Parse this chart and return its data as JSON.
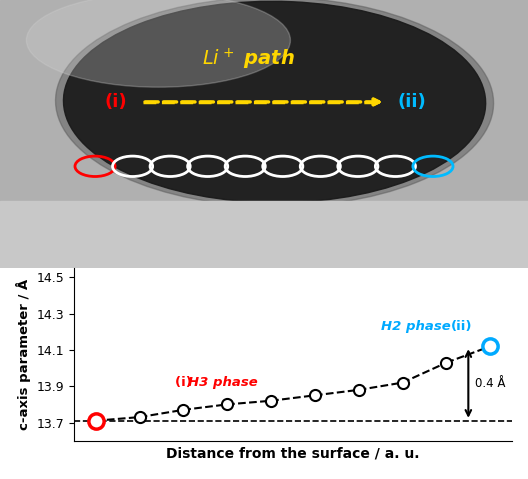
{
  "x_data": [
    1,
    2,
    3,
    4,
    5,
    6,
    7,
    8,
    9,
    10
  ],
  "y_data": [
    13.71,
    13.73,
    13.77,
    13.8,
    13.82,
    13.85,
    13.88,
    13.92,
    14.03,
    14.12
  ],
  "first_point_color": "#FF0000",
  "last_point_color": "#00AAFF",
  "line_color": "#000000",
  "dashed_line_y": 13.71,
  "ylabel": "c-axis parameter / Å",
  "xlabel": "Distance from the surface / a. u.",
  "ylim": [
    13.6,
    14.55
  ],
  "yticks": [
    13.7,
    13.9,
    14.1,
    14.3,
    14.5
  ],
  "annotation_0_4": "0.4 Å",
  "h3_label": "(i) H3 phase",
  "h2_label": "H2 phase (ii)",
  "h3_color": "#FF0000",
  "h2_color": "#00AAFF",
  "background_color": "#FFFFFF",
  "plot_bg": "#E8E8E8",
  "title_li": "Li⁺ path",
  "title_color": "#FFD700",
  "circle_i_color": "#FF0000",
  "circle_ii_color": "#00AAFF",
  "circle_mid_color": "#FFFFFF"
}
